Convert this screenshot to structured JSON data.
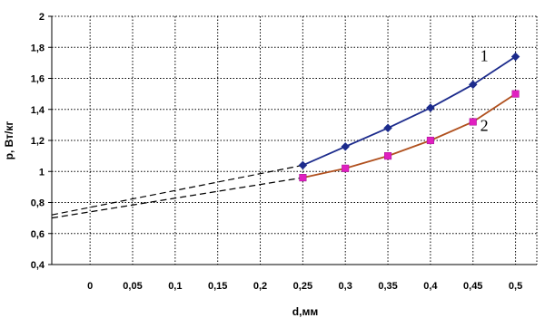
{
  "chart_data": {
    "type": "line",
    "xlabel": "d,мм",
    "ylabel": "p, Вт/кг",
    "x_tick_labels": [
      "0",
      "0,05",
      "0,1",
      "0,15",
      "0,2",
      "0,25",
      "0,3",
      "0,35",
      "0,4",
      "0,45",
      "0,5"
    ],
    "y_tick_labels": [
      "0,4",
      "0,6",
      "0,8",
      "1",
      "1,2",
      "1,4",
      "1,6",
      "1,8",
      "2"
    ],
    "xlim": [
      -0.045,
      0.525
    ],
    "ylim": [
      0.4,
      2.0
    ],
    "grid": true,
    "series": [
      {
        "name": "1",
        "color": "#1c2b8c",
        "marker": "diamond",
        "marker_color": "#1c2b8c",
        "x": [
          0.25,
          0.3,
          0.35,
          0.4,
          0.45,
          0.5
        ],
        "y": [
          1.04,
          1.16,
          1.28,
          1.41,
          1.56,
          1.74
        ],
        "extrapolation": {
          "x": [
            -0.045,
            0.25
          ],
          "y": [
            0.72,
            1.04
          ],
          "style": "dashed"
        }
      },
      {
        "name": "2",
        "color": "#b0501e",
        "marker": "square",
        "marker_color": "#e020c0",
        "x": [
          0.25,
          0.3,
          0.35,
          0.4,
          0.45,
          0.5
        ],
        "y": [
          0.96,
          1.02,
          1.1,
          1.2,
          1.32,
          1.5
        ],
        "extrapolation": {
          "x": [
            -0.045,
            0.25
          ],
          "y": [
            0.7,
            0.96
          ],
          "style": "dashed"
        }
      }
    ]
  }
}
